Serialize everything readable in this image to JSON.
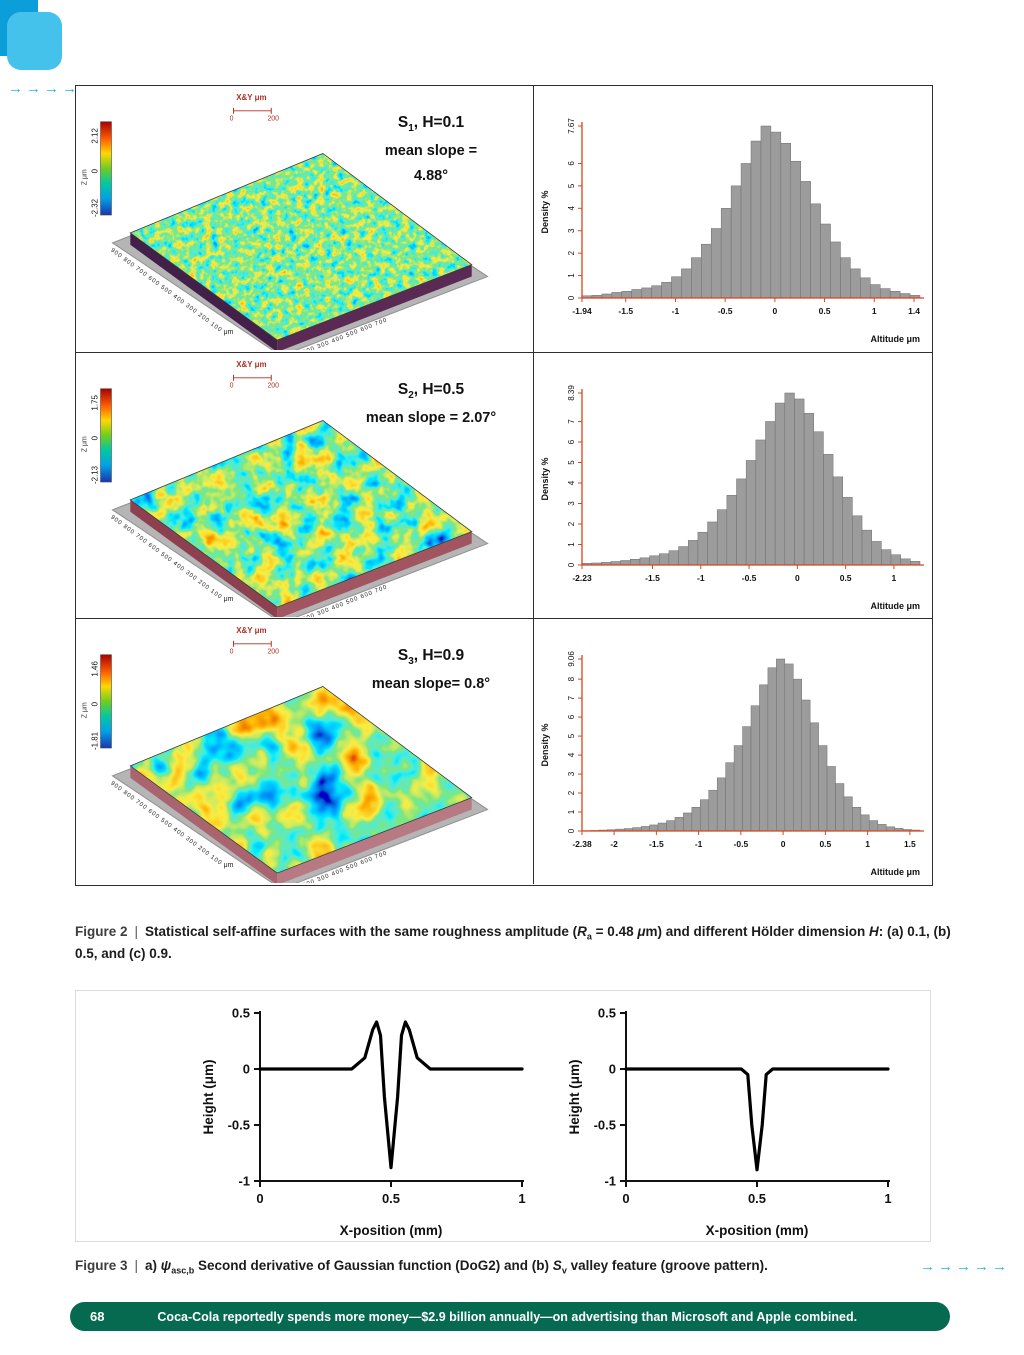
{
  "colors": {
    "accent_cyan": "#2ab4e4",
    "accent_blue": "#0b9ed9",
    "footer_green": "#056a50",
    "hist_axis": "#d9441f",
    "hist_bar": "#9c9c9c",
    "surface_scale_red": "#b03020"
  },
  "decor": {
    "arrows_top": "→→→→→",
    "arrows_bottom": "→→→→→"
  },
  "figure2": {
    "rows": [
      {
        "title_s": "S",
        "title_sub": "1",
        "title_rest": ", H=0.1",
        "slope_line1": "mean slope =",
        "slope_line2": "4.88°",
        "colorbar_top": "2.12",
        "colorbar_mid": "0",
        "colorbar_bottom": "-2.32",
        "colorbar_zlabel": "Z μm",
        "xy_label": "X&Y μm",
        "xy_0": "0",
        "xy_200": "200",
        "edge_left": "900 800 700 600 500 400 300 200 100",
        "edge_right": "100 200 300 400 500 600 700",
        "um": "μm"
      },
      {
        "title_s": "S",
        "title_sub": "2",
        "title_rest": ",  H=0.5",
        "slope_line1": "mean slope = 2.07°",
        "slope_line2": "",
        "colorbar_top": "1.75",
        "colorbar_mid": "0",
        "colorbar_bottom": "-2.13",
        "colorbar_zlabel": "Z μm",
        "xy_label": "X&Y μm",
        "xy_0": "0",
        "xy_200": "200",
        "edge_left": "900 800 700 600 500 400 300 200 100",
        "edge_right": "100 200 300 400 500 600 700",
        "um": "μm"
      },
      {
        "title_s": "S",
        "title_sub": "3",
        "title_rest": ",  H=0.9",
        "slope_line1": "mean slope= 0.8°",
        "slope_line2": "",
        "colorbar_top": "1.46",
        "colorbar_mid": "0",
        "colorbar_bottom": "-1.81",
        "colorbar_zlabel": "Z μm",
        "xy_label": "X&Y μm",
        "xy_0": "0",
        "xy_200": "200",
        "edge_left": "900 800 700 600 500 400 300 200 100",
        "edge_right": "100 200 300 400 500 600 700",
        "um": "μm"
      }
    ],
    "caption": {
      "label": "Figure 2",
      "sep": "|",
      "t1": "Statistical self-affine surfaces with the same roughness amplitude (",
      "rsym": "R",
      "rsub": "a",
      "t2": " = 0.48 ",
      "musym": "μ",
      "t3": "m) and different Hölder dimension ",
      "hsym": "H",
      "t4": ": (a) 0.1, (b) 0.5, and (c) 0.9."
    }
  },
  "figure3": {
    "caption": {
      "label": "Figure 3",
      "sep": "|",
      "t1": "a) ",
      "psi": "ψ",
      "psisub": "asc,b",
      "t2": " Second derivative of Gaussian function (DoG2) and (b) ",
      "ssym": "S",
      "ssub": "v",
      "t3": " valley feature (groove pattern)."
    }
  },
  "footer": {
    "page_number": "68",
    "text": "Coca-Cola reportedly spends more money—$2.9 billion annually—on advertising than Microsoft and Apple combined."
  },
  "chart_data": [
    {
      "type": "bar",
      "panel": "S1 altitude histogram",
      "ylabel": "Density %",
      "xlabel": "Altitude μm",
      "ymax": 7.67,
      "yticks": [
        "0",
        "1",
        "2",
        "3",
        "4",
        "5",
        "6",
        "7.67"
      ],
      "x_start": -1.94,
      "bin_width": 0.1,
      "xticks": [
        "-1.94",
        "-1.5",
        "-1",
        "-0.5",
        "0",
        "0.5",
        "1",
        "1.4"
      ],
      "values": [
        0.1,
        0.12,
        0.18,
        0.25,
        0.3,
        0.38,
        0.45,
        0.55,
        0.7,
        0.95,
        1.3,
        1.8,
        2.4,
        3.1,
        4.0,
        5.0,
        6.0,
        7.0,
        7.67,
        7.4,
        6.9,
        6.1,
        5.2,
        4.2,
        3.3,
        2.5,
        1.8,
        1.3,
        0.9,
        0.6,
        0.42,
        0.3,
        0.2,
        0.12
      ]
    },
    {
      "type": "bar",
      "panel": "S2 altitude histogram",
      "ylabel": "Density %",
      "xlabel": "Altitude μm",
      "ymax": 8.39,
      "yticks": [
        "0",
        "1",
        "2",
        "3",
        "4",
        "5",
        "6",
        "7",
        "8.39"
      ],
      "x_start": -2.23,
      "bin_width": 0.1,
      "xticks": [
        "-2.23",
        "-1.5",
        "-1",
        "-0.5",
        "0",
        "0.5",
        "1"
      ],
      "values": [
        0.08,
        0.1,
        0.13,
        0.17,
        0.22,
        0.28,
        0.35,
        0.45,
        0.55,
        0.7,
        0.9,
        1.2,
        1.6,
        2.1,
        2.7,
        3.4,
        4.2,
        5.1,
        6.1,
        7.0,
        7.9,
        8.39,
        8.1,
        7.4,
        6.5,
        5.4,
        4.3,
        3.3,
        2.4,
        1.7,
        1.15,
        0.75,
        0.5,
        0.3,
        0.18
      ]
    },
    {
      "type": "bar",
      "panel": "S3 altitude histogram",
      "ylabel": "Density %",
      "xlabel": "Altitude μm",
      "ymax": 9.06,
      "yticks": [
        "0",
        "1",
        "2",
        "3",
        "4",
        "5",
        "6",
        "7",
        "8",
        "9.06"
      ],
      "x_start": -2.38,
      "bin_width": 0.1,
      "xticks": [
        "-2.38",
        "-2",
        "-1.5",
        "-1",
        "-0.5",
        "0",
        "0.5",
        "1",
        "1.5"
      ],
      "values": [
        0.02,
        0.03,
        0.05,
        0.07,
        0.1,
        0.13,
        0.18,
        0.24,
        0.32,
        0.42,
        0.55,
        0.72,
        0.95,
        1.25,
        1.65,
        2.15,
        2.8,
        3.6,
        4.5,
        5.5,
        6.6,
        7.7,
        8.6,
        9.06,
        8.8,
        8.0,
        6.9,
        5.7,
        4.5,
        3.4,
        2.5,
        1.8,
        1.25,
        0.85,
        0.55,
        0.35,
        0.22,
        0.14,
        0.08,
        0.05
      ]
    },
    {
      "type": "line",
      "panel": "a) DoG2 wavelet",
      "ylabel": "Height (μm)",
      "xlabel": "X-position (mm)",
      "xlim": [
        0,
        1
      ],
      "ylim": [
        -1,
        0.5
      ],
      "xticks": [
        "0",
        "0.5",
        "1"
      ],
      "yticks": [
        "0.5",
        "0",
        "-0.5",
        "-1"
      ],
      "x": [
        0,
        0.35,
        0.4,
        0.43,
        0.445,
        0.46,
        0.475,
        0.5,
        0.525,
        0.54,
        0.555,
        0.57,
        0.6,
        0.65,
        1.0
      ],
      "y": [
        0,
        0,
        0.1,
        0.35,
        0.42,
        0.3,
        -0.25,
        -0.88,
        -0.25,
        0.3,
        0.42,
        0.35,
        0.1,
        0,
        0
      ]
    },
    {
      "type": "line",
      "panel": "b) Sv valley groove",
      "ylabel": "Height (μm)",
      "xlabel": "X-position (mm)",
      "xlim": [
        0,
        1
      ],
      "ylim": [
        -1,
        0.5
      ],
      "xticks": [
        "0",
        "0.5",
        "1"
      ],
      "yticks": [
        "0.5",
        "0",
        "-0.5",
        "-1"
      ],
      "x": [
        0,
        0.44,
        0.465,
        0.48,
        0.5,
        0.52,
        0.535,
        0.56,
        1.0
      ],
      "y": [
        0,
        0,
        -0.05,
        -0.5,
        -0.9,
        -0.5,
        -0.05,
        0,
        0
      ]
    }
  ]
}
